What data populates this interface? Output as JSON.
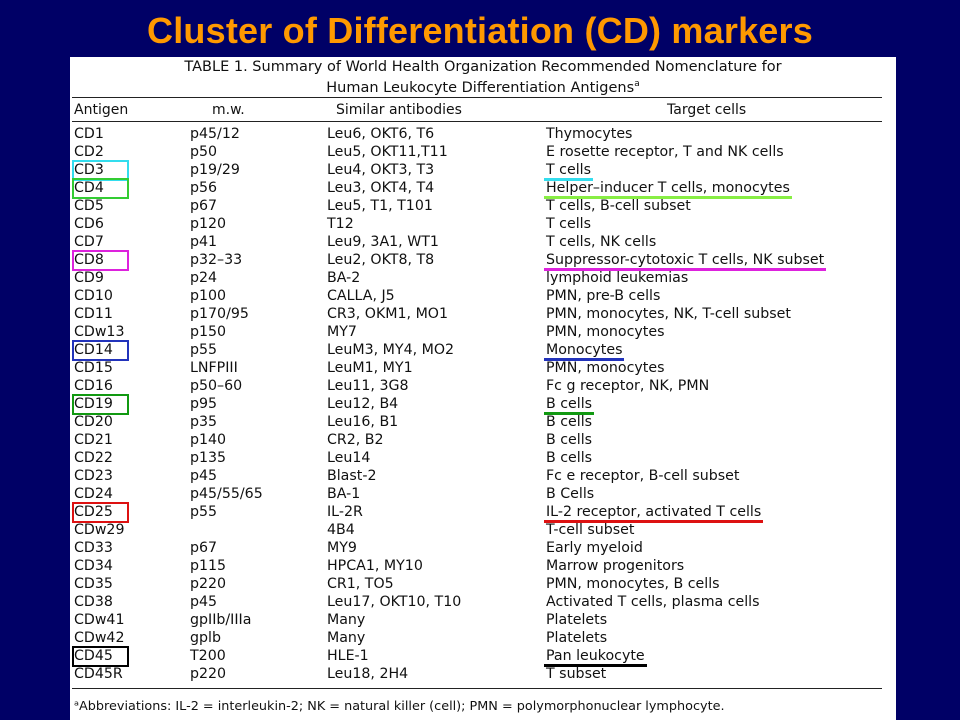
{
  "slide": {
    "title": "Cluster of Differentiation (CD) markers"
  },
  "table": {
    "title_line1": "TABLE 1. Summary of World Health Organization Recommended Nomenclature for",
    "title_line2": "Human Leukocyte Differentiation Antigens",
    "title_sup": "a",
    "headers": [
      "Antigen",
      "m.w.",
      "Similar antibodies",
      "Target cells"
    ],
    "rows": [
      [
        "CD1",
        "p45/12",
        "Leu6, OKT6, T6",
        "Thymocytes"
      ],
      [
        "CD2",
        "p50",
        "Leu5, OKT11,T11",
        "E rosette receptor, T and NK cells"
      ],
      [
        "CD3",
        "p19/29",
        "Leu4, OKT3, T3",
        "T cells"
      ],
      [
        "CD4",
        "p56",
        "Leu3, OKT4, T4",
        "Helper–inducer T cells, monocytes"
      ],
      [
        "CD5",
        "p67",
        "Leu5, T1, T101",
        "T cells, B-cell subset"
      ],
      [
        "CD6",
        "p120",
        "T12",
        "T cells"
      ],
      [
        "CD7",
        "p41",
        "Leu9, 3A1, WT1",
        "T cells, NK cells"
      ],
      [
        "CD8",
        "p32–33",
        "Leu2, OKT8, T8",
        "Suppressor-cytotoxic T cells, NK subset"
      ],
      [
        "CD9",
        "p24",
        "BA-2",
        "lymphoid leukemias"
      ],
      [
        "CD10",
        "p100",
        "CALLA, J5",
        "PMN, pre-B cells"
      ],
      [
        "CD11",
        "p170/95",
        "CR3, OKM1, MO1",
        "PMN, monocytes, NK, T-cell subset"
      ],
      [
        "CDw13",
        "p150",
        "MY7",
        "PMN, monocytes"
      ],
      [
        "CD14",
        "p55",
        "LeuM3, MY4, MO2",
        "Monocytes"
      ],
      [
        "CD15",
        "LNFPIII",
        "LeuM1, MY1",
        "PMN, monocytes"
      ],
      [
        "CD16",
        "p50–60",
        "Leu11, 3G8",
        "Fc g receptor, NK, PMN"
      ],
      [
        "CD19",
        "p95",
        "Leu12, B4",
        "B cells"
      ],
      [
        "CD20",
        "p35",
        "Leu16, B1",
        "B cells"
      ],
      [
        "CD21",
        "p140",
        "CR2, B2",
        "B cells"
      ],
      [
        "CD22",
        "p135",
        "Leu14",
        "B cells"
      ],
      [
        "CD23",
        "p45",
        "Blast-2",
        "Fc e receptor, B-cell subset"
      ],
      [
        "CD24",
        "p45/55/65",
        "BA-1",
        "B Cells"
      ],
      [
        "CD25",
        "p55",
        "IL-2R",
        "IL-2 receptor, activated T cells"
      ],
      [
        "CDw29",
        "",
        "4B4",
        "T-cell subset"
      ],
      [
        "CD33",
        "p67",
        "MY9",
        "Early myeloid"
      ],
      [
        "CD34",
        "p115",
        "HPCA1, MY10",
        "Marrow progenitors"
      ],
      [
        "CD35",
        "p220",
        "CR1, TO5",
        "PMN, monocytes, B cells"
      ],
      [
        "CD38",
        "p45",
        "Leu17, OKT10, T10",
        "Activated T cells, plasma cells"
      ],
      [
        "CDw41",
        "gpIIb/IIIa",
        "Many",
        "Platelets"
      ],
      [
        "CDw42",
        "gplb",
        "Many",
        "Platelets"
      ],
      [
        "CD45",
        "T200",
        "HLE-1",
        "Pan leukocyte"
      ],
      [
        "CD45R",
        "p220",
        "Leu18, 2H4",
        "T subset"
      ]
    ],
    "footnote": "ᵃAbbreviations: IL-2 = interleukin-2; NK = natural killer (cell); PMN = polymorphonuclear lymphocyte."
  },
  "highlights": {
    "CD3": "#33ddee",
    "CD4": "#33cc33",
    "CD8": "#dd22dd",
    "CD14": "#2233bb",
    "CD19": "#119911",
    "CD25": "#dd1111",
    "CD45": "#000000"
  },
  "underline_colors": {
    "CD3": "#33ddee",
    "CD4": "#88ee44",
    "CD8": "#dd22dd",
    "CD14": "#2233bb",
    "CD19": "#119911",
    "CD25": "#dd1111",
    "CD45": "#000000"
  }
}
